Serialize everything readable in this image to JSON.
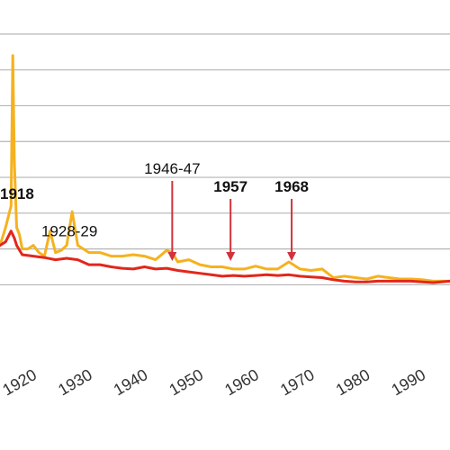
{
  "colors": {
    "weekly": "#f5b21f",
    "average": "#e2271b",
    "arrow": "#d1323b",
    "grid": "#b5b5b5"
  },
  "chart_data": {
    "type": "line",
    "xlim": [
      1916,
      1997
    ],
    "ylim": [
      -0.5,
      4.3
    ],
    "x_ticks": [
      1920,
      1930,
      1940,
      1950,
      1960,
      1970,
      1980,
      1990
    ],
    "x_tick_labels": [
      "1920",
      "1930",
      "1940",
      "1950",
      "1960",
      "1970",
      "1980",
      "1990"
    ],
    "gridlines": [
      0.5,
      1.0,
      1.5,
      2.0,
      2.5,
      3.0,
      3.5,
      4.0
    ],
    "grid": true,
    "series": [
      {
        "x": [
          1916,
          1917,
          1918,
          1918.3,
          1918.6,
          1919,
          1919.5,
          1920,
          1921,
          1922,
          1923,
          1924,
          1925,
          1926,
          1927,
          1928,
          1929,
          1930,
          1932,
          1934,
          1936,
          1938,
          1940,
          1942,
          1944,
          1946,
          1947,
          1948,
          1950,
          1952,
          1954,
          1956,
          1958,
          1960,
          1962,
          1964,
          1966,
          1968,
          1970,
          1972,
          1974,
          1976,
          1978,
          1980,
          1982,
          1984,
          1986,
          1988,
          1990,
          1992,
          1994,
          1997
        ],
        "values": [
          1.05,
          1.3,
          1.6,
          3.7,
          2.2,
          1.3,
          1.2,
          1.0,
          1.0,
          1.05,
          0.95,
          0.9,
          1.25,
          0.95,
          0.98,
          1.05,
          1.52,
          1.05,
          0.95,
          0.95,
          0.9,
          0.9,
          0.92,
          0.9,
          0.85,
          0.98,
          0.95,
          0.82,
          0.85,
          0.78,
          0.75,
          0.75,
          0.72,
          0.72,
          0.76,
          0.72,
          0.72,
          0.82,
          0.72,
          0.7,
          0.72,
          0.6,
          0.62,
          0.6,
          0.58,
          0.62,
          0.6,
          0.58,
          0.58,
          0.57,
          0.55,
          0.55
        ]
      },
      {
        "x": [
          1916,
          1917,
          1918,
          1918.6,
          1919,
          1920,
          1922,
          1924,
          1926,
          1928,
          1930,
          1932,
          1934,
          1936,
          1938,
          1940,
          1942,
          1944,
          1946,
          1948,
          1950,
          1952,
          1954,
          1956,
          1958,
          1960,
          1962,
          1964,
          1966,
          1968,
          1970,
          1972,
          1974,
          1976,
          1978,
          1980,
          1982,
          1984,
          1986,
          1988,
          1990,
          1992,
          1994,
          1997
        ],
        "values": [
          1.05,
          1.1,
          1.25,
          1.15,
          1.05,
          0.92,
          0.9,
          0.88,
          0.85,
          0.87,
          0.85,
          0.78,
          0.78,
          0.75,
          0.73,
          0.72,
          0.75,
          0.72,
          0.73,
          0.7,
          0.68,
          0.66,
          0.64,
          0.62,
          0.63,
          0.62,
          0.63,
          0.64,
          0.63,
          0.64,
          0.62,
          0.61,
          0.6,
          0.57,
          0.55,
          0.54,
          0.54,
          0.55,
          0.55,
          0.55,
          0.55,
          0.54,
          0.53,
          0.55
        ]
      }
    ],
    "annotations": [
      {
        "text": "1918",
        "x": 1918,
        "bold": true,
        "arrow": false
      },
      {
        "text": "1928-29",
        "x": 1928.5,
        "bold": false,
        "arrow": false
      },
      {
        "text": "1946-47",
        "x": 1947,
        "bold": false,
        "arrow": true
      },
      {
        "text": "1957",
        "x": 1957.5,
        "bold": true,
        "arrow": true
      },
      {
        "text": "1968",
        "x": 1968.5,
        "bold": true,
        "arrow": true
      }
    ]
  }
}
